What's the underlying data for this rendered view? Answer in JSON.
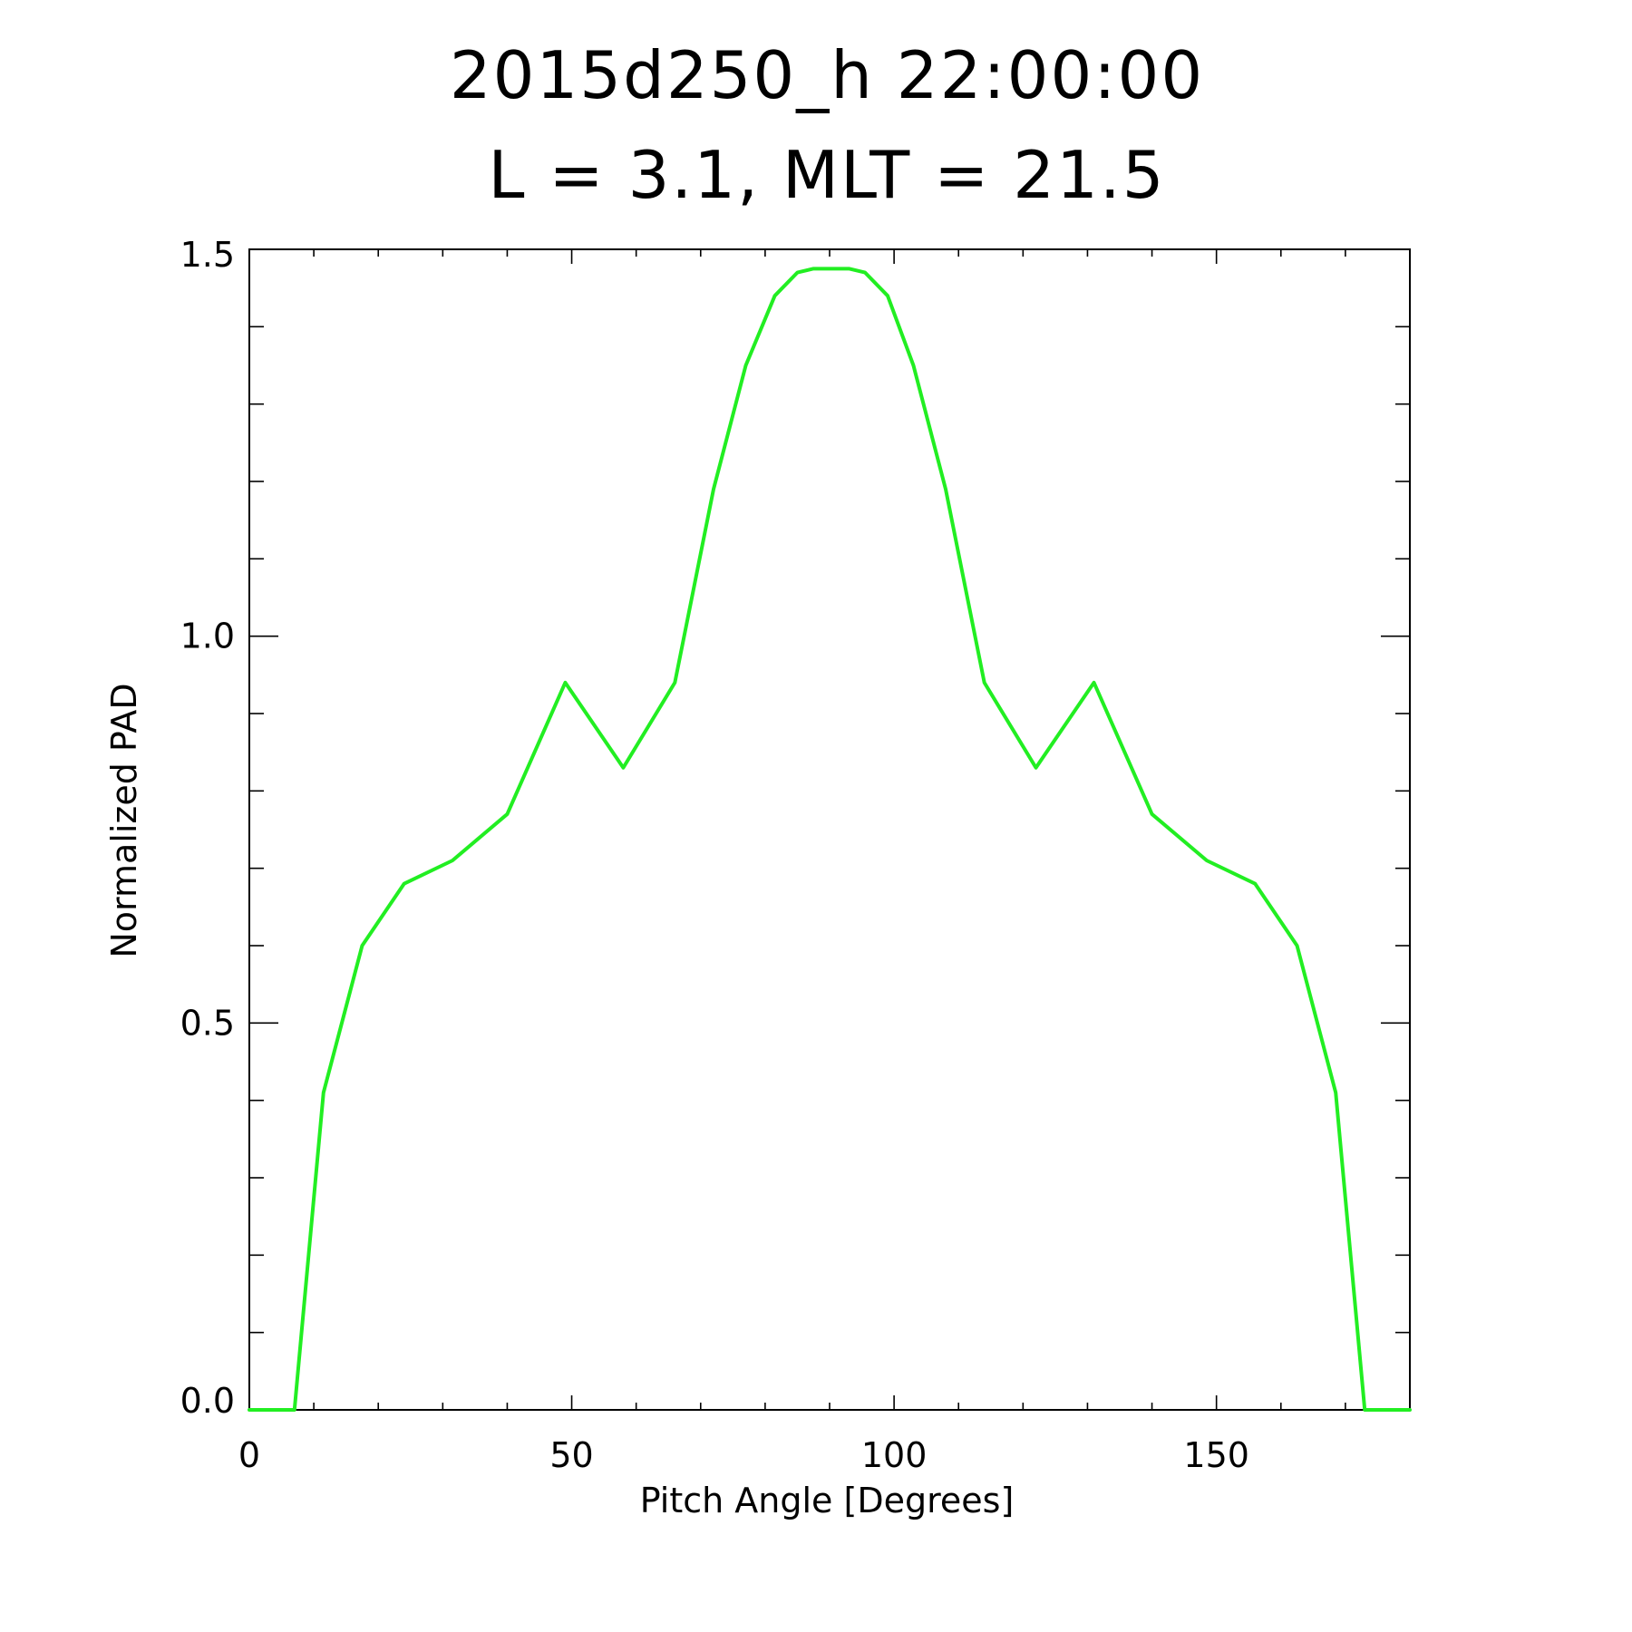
{
  "chart_data": {
    "type": "line",
    "title": "2015d250_h  22:00:00",
    "subtitle": "L = 3.1, MLT = 21.5",
    "xlabel": "Pitch Angle [Degrees]",
    "ylabel": "Normalized PAD",
    "xlim": [
      0,
      180
    ],
    "ylim": [
      0,
      1.5
    ],
    "x_major_ticks": [
      0,
      50,
      100,
      150
    ],
    "x_major_tick_labels": [
      "0",
      "50",
      "100",
      "150"
    ],
    "x_minor_step": 10,
    "y_major_ticks": [
      0.0,
      0.5,
      1.0,
      1.5
    ],
    "y_major_tick_labels": [
      "0.0",
      "0.5",
      "1.0",
      "1.5"
    ],
    "y_minor_step": 0.1,
    "grid": false,
    "series": [
      {
        "color": "#22ee22",
        "x": [
          0,
          7,
          11.5,
          17.5,
          24,
          31.5,
          40,
          49,
          58,
          66,
          72,
          77,
          81.5,
          85,
          87.5,
          90,
          93,
          95.5,
          99,
          103,
          108,
          114,
          122,
          131,
          140,
          148.5,
          156,
          162.5,
          168.5,
          173,
          180
        ],
        "y": [
          0,
          0,
          0.41,
          0.6,
          0.68,
          0.71,
          0.77,
          0.94,
          0.83,
          0.94,
          1.19,
          1.35,
          1.44,
          1.47,
          1.475,
          1.475,
          1.475,
          1.47,
          1.44,
          1.35,
          1.19,
          0.94,
          0.83,
          0.94,
          0.77,
          0.71,
          0.68,
          0.6,
          0.41,
          0,
          0
        ]
      }
    ]
  }
}
